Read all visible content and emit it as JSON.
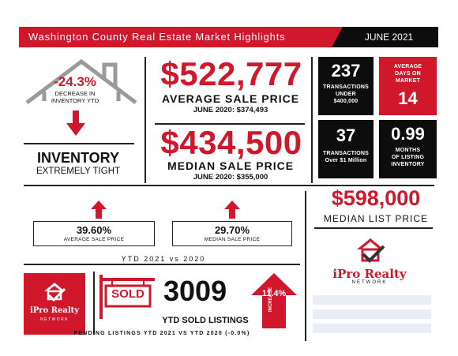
{
  "header": {
    "title": "Washington County Real Estate Market Highlights",
    "period": "JUNE 2021"
  },
  "inventory": {
    "change": "-24.3%",
    "change_label_1": "DECREASE IN",
    "change_label_2": "INVENTORY YTD",
    "title": "INVENTORY",
    "subtitle": "EXTREMELY TIGHT"
  },
  "average_sale": {
    "value": "$522,777",
    "label": "AVERAGE SALE PRICE",
    "prior": "JUNE 2020: $374,493"
  },
  "median_sale": {
    "value": "$434,500",
    "label": "MEDIAN SALE PRICE",
    "prior": "JUNE 2020: $355,000"
  },
  "stats": {
    "tx_under": {
      "value": "237",
      "label_1": "TRANSACTIONS",
      "label_2": "UNDER",
      "label_3": "$400,000"
    },
    "days": {
      "label_1": "AVERAGE",
      "label_2": "DAYS ON",
      "label_3": "MARKET",
      "value": "14"
    },
    "tx_over": {
      "value": "37",
      "label_1": "TRANSACTIONS",
      "label_2": "Over $1 Million"
    },
    "months": {
      "value": "0.99",
      "label_1": "MONTHS",
      "label_2": "OF LISTING",
      "label_3": "INVENTORY"
    }
  },
  "list_price": {
    "value": "$598,000",
    "label": "MEDIAN LIST PRICE"
  },
  "ytd": {
    "avg_pct": "39.60%",
    "avg_label": "AVERAGE SALE PRICE",
    "median_pct": "29.70%",
    "median_label": "MEDIAN SALE PRICE",
    "caption": "YTD 2021 vs 2020"
  },
  "sold": {
    "badge": "SOLD",
    "count": "3009",
    "label": "YTD SOLD LISTINGS",
    "increase_pct": "11.4%",
    "increase_word": "INCREASE",
    "pending": "PENDING LISTINGS YTD 2021 VS YTD 2020 (-0.0%)"
  },
  "brand": {
    "name": "iPro Realty",
    "network": "NETWORK"
  },
  "colors": {
    "accent": "#d0172c",
    "dark": "#0d0d0d"
  }
}
